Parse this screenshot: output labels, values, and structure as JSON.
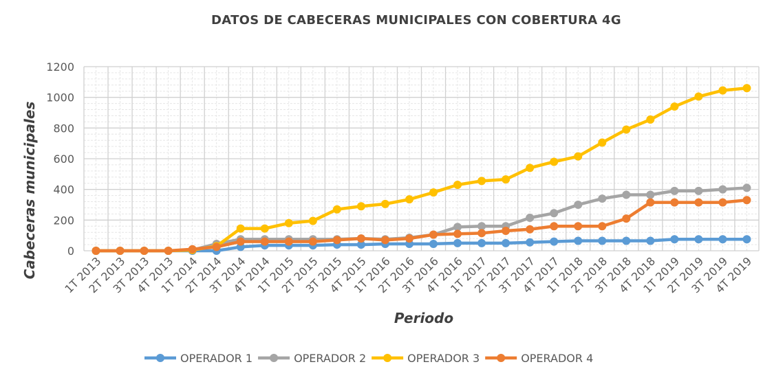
{
  "chart_data": {
    "type": "line",
    "title": "DATOS DE CABECERAS MUNICIPALES CON COBERTURA 4G",
    "xlabel": "Periodo",
    "ylabel": "Cabeceras municipales",
    "ylim": [
      0,
      1200
    ],
    "yticks": [
      0,
      200,
      400,
      600,
      800,
      1000,
      1200
    ],
    "grid": true,
    "legend_position": "bottom",
    "categories": [
      "1T 2013",
      "2T 2013",
      "3T 2013",
      "4T 2013",
      "1T 2014",
      "2T 2014",
      "3T 2014",
      "4T 2014",
      "1T 2015",
      "2T 2015",
      "3T 2015",
      "4T 2015",
      "1T 2016",
      "2T 2016",
      "3T 2016",
      "4T 2016",
      "1T 2017",
      "2T 2017",
      "3T 2017",
      "4T 2017",
      "1T 2018",
      "2T 2018",
      "3T 2018",
      "4T 2018",
      "1T 2019",
      "2T 2019",
      "3T 2019",
      "4T 2019"
    ],
    "series": [
      {
        "name": "OPERADOR 1",
        "color": "#5B9BD5",
        "values": [
          0,
          0,
          0,
          0,
          0,
          0,
          25,
          35,
          35,
          35,
          40,
          40,
          45,
          45,
          45,
          50,
          50,
          50,
          55,
          60,
          65,
          65,
          65,
          65,
          75,
          75,
          75,
          75
        ]
      },
      {
        "name": "OPERADOR 2",
        "color": "#A5A5A5",
        "values": [
          0,
          0,
          0,
          0,
          5,
          45,
          75,
          75,
          75,
          75,
          75,
          80,
          75,
          85,
          105,
          155,
          160,
          160,
          215,
          245,
          300,
          340,
          365,
          365,
          390,
          390,
          400,
          410
        ]
      },
      {
        "name": "OPERADOR 3",
        "color": "#FFC000",
        "values": [
          0,
          0,
          0,
          0,
          5,
          30,
          145,
          145,
          180,
          195,
          270,
          290,
          305,
          335,
          380,
          430,
          455,
          465,
          540,
          580,
          615,
          705,
          790,
          855,
          940,
          1005,
          1045,
          1060
        ]
      },
      {
        "name": "OPERADOR 4",
        "color": "#ED7D31",
        "values": [
          0,
          0,
          0,
          0,
          10,
          25,
          60,
          60,
          60,
          60,
          70,
          80,
          70,
          80,
          105,
          110,
          115,
          130,
          140,
          160,
          160,
          160,
          210,
          315,
          315,
          315,
          315,
          330
        ]
      }
    ]
  }
}
